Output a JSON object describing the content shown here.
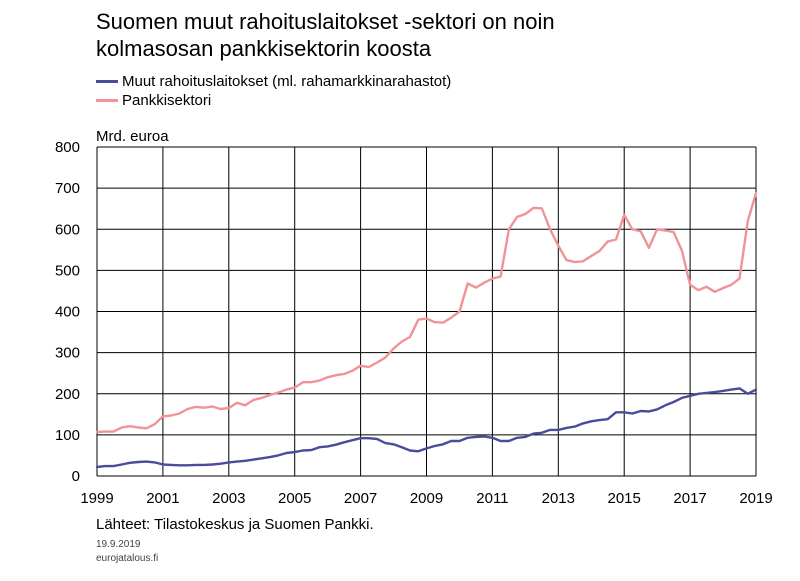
{
  "title_line1": "Suomen muut rahoituslaitokset -sektori on noin",
  "title_line2": "kolmasosan pankkisektorin koosta",
  "unit": "Mrd. euroa",
  "source": "Lähteet: Tilastokeskus ja Suomen Pankki.",
  "date": "19.9.2019",
  "site": "eurojatalous.fi",
  "colors": {
    "muut": "#4B4B9E",
    "pankki": "#F09396",
    "grid": "#000000"
  },
  "chart_data": {
    "type": "line",
    "ylim": [
      0,
      800
    ],
    "yticks": [
      0,
      100,
      200,
      300,
      400,
      500,
      600,
      700,
      800
    ],
    "xlim": [
      1999,
      2019
    ],
    "xticks": [
      "1999",
      "2001",
      "2003",
      "2005",
      "2007",
      "2009",
      "2011",
      "2013",
      "2015",
      "2017",
      "2019"
    ],
    "x": [
      1999.0,
      1999.25,
      1999.5,
      1999.75,
      2000.0,
      2000.25,
      2000.5,
      2000.75,
      2001.0,
      2001.25,
      2001.5,
      2001.75,
      2002.0,
      2002.25,
      2002.5,
      2002.75,
      2003.0,
      2003.25,
      2003.5,
      2003.75,
      2004.0,
      2004.25,
      2004.5,
      2004.75,
      2005.0,
      2005.25,
      2005.5,
      2005.75,
      2006.0,
      2006.25,
      2006.5,
      2006.75,
      2007.0,
      2007.25,
      2007.5,
      2007.75,
      2008.0,
      2008.25,
      2008.5,
      2008.75,
      2009.0,
      2009.25,
      2009.5,
      2009.75,
      2010.0,
      2010.25,
      2010.5,
      2010.75,
      2011.0,
      2011.25,
      2011.5,
      2011.75,
      2012.0,
      2012.25,
      2012.5,
      2012.75,
      2013.0,
      2013.25,
      2013.5,
      2013.75,
      2014.0,
      2014.25,
      2014.5,
      2014.75,
      2015.0,
      2015.25,
      2015.5,
      2015.75,
      2016.0,
      2016.25,
      2016.5,
      2016.75,
      2017.0,
      2017.25,
      2017.5,
      2017.75,
      2018.0,
      2018.25,
      2018.5,
      2018.75,
      2019.0
    ],
    "series": [
      {
        "name": "Muut rahoituslaitokset (ml. rahamarkkinarahastot)",
        "color": "#4B4B9E",
        "values": [
          22,
          24,
          24,
          28,
          32,
          34,
          35,
          33,
          28,
          27,
          26,
          26,
          27,
          27,
          28,
          30,
          33,
          35,
          37,
          40,
          43,
          46,
          50,
          56,
          58,
          62,
          63,
          70,
          72,
          76,
          82,
          87,
          92,
          92,
          90,
          80,
          77,
          70,
          62,
          60,
          67,
          73,
          77,
          85,
          85,
          93,
          95,
          96,
          93,
          85,
          85,
          93,
          95,
          103,
          105,
          112,
          112,
          117,
          120,
          128,
          133,
          136,
          138,
          155,
          155,
          152,
          158,
          157,
          162,
          172,
          180,
          190,
          195,
          200,
          202,
          204,
          207,
          210,
          213,
          200,
          210
        ]
      },
      {
        "name": "Pankkisektori",
        "color": "#F09396",
        "values": [
          107,
          108,
          108,
          118,
          121,
          118,
          116,
          126,
          145,
          147,
          152,
          163,
          168,
          166,
          169,
          163,
          165,
          178,
          172,
          185,
          190,
          197,
          203,
          210,
          215,
          228,
          228,
          232,
          240,
          245,
          248,
          256,
          268,
          265,
          276,
          288,
          310,
          327,
          338,
          380,
          383,
          374,
          373,
          385,
          400,
          468,
          458,
          470,
          480,
          485,
          600,
          630,
          637,
          652,
          651,
          600,
          560,
          525,
          520,
          522,
          535,
          547,
          570,
          575,
          635,
          600,
          595,
          555,
          600,
          597,
          593,
          548,
          465,
          452,
          460,
          448,
          457,
          465,
          480,
          620,
          688
        ]
      }
    ]
  }
}
